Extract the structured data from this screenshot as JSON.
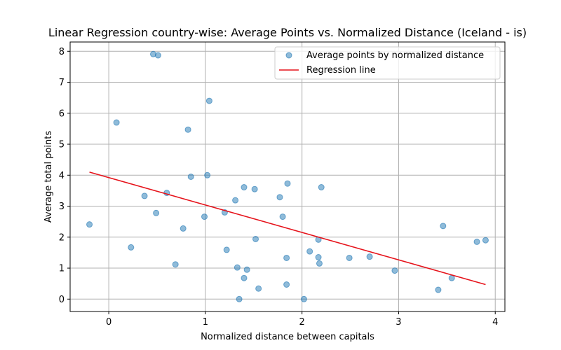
{
  "chart_data": {
    "type": "scatter",
    "title": "Linear Regression country-wise: Average Points vs. Normalized Distance (Iceland - is)",
    "xlabel": "Normalized distance between capitals",
    "ylabel": "Average total points",
    "xlim": [
      -0.4,
      4.1
    ],
    "ylim": [
      -0.4,
      8.3
    ],
    "xticks": [
      0,
      1,
      2,
      3,
      4
    ],
    "yticks": [
      0,
      1,
      2,
      3,
      4,
      5,
      6,
      7,
      8
    ],
    "grid": true,
    "legend_position": "upper-right",
    "colors": {
      "points": "#1f77b4",
      "line": "#e6131b"
    },
    "series": [
      {
        "name": "Average points by normalized distance",
        "kind": "scatter",
        "points": [
          [
            0.46,
            7.91
          ],
          [
            0.51,
            7.87
          ],
          [
            1.04,
            6.4
          ],
          [
            0.08,
            5.7
          ],
          [
            0.82,
            5.47
          ],
          [
            1.02,
            4.0
          ],
          [
            0.85,
            3.95
          ],
          [
            1.85,
            3.73
          ],
          [
            1.4,
            3.61
          ],
          [
            1.51,
            3.55
          ],
          [
            2.2,
            3.61
          ],
          [
            0.6,
            3.43
          ],
          [
            0.37,
            3.33
          ],
          [
            1.77,
            3.29
          ],
          [
            1.31,
            3.19
          ],
          [
            1.2,
            2.8
          ],
          [
            0.49,
            2.78
          ],
          [
            0.99,
            2.66
          ],
          [
            1.8,
            2.66
          ],
          [
            -0.2,
            2.41
          ],
          [
            3.46,
            2.36
          ],
          [
            0.77,
            2.28
          ],
          [
            1.52,
            1.94
          ],
          [
            2.17,
            1.92
          ],
          [
            3.9,
            1.9
          ],
          [
            3.81,
            1.85
          ],
          [
            0.23,
            1.67
          ],
          [
            1.22,
            1.59
          ],
          [
            2.08,
            1.54
          ],
          [
            2.17,
            1.35
          ],
          [
            1.84,
            1.33
          ],
          [
            2.49,
            1.33
          ],
          [
            2.7,
            1.37
          ],
          [
            0.69,
            1.12
          ],
          [
            2.18,
            1.15
          ],
          [
            1.33,
            1.02
          ],
          [
            1.43,
            0.95
          ],
          [
            2.96,
            0.92
          ],
          [
            1.4,
            0.68
          ],
          [
            3.55,
            0.68
          ],
          [
            1.84,
            0.47
          ],
          [
            1.55,
            0.34
          ],
          [
            3.41,
            0.3
          ],
          [
            1.35,
            0.0
          ],
          [
            2.02,
            0.0
          ]
        ]
      },
      {
        "name": "Regression line",
        "kind": "line",
        "points": [
          [
            -0.2,
            4.1
          ],
          [
            3.9,
            0.47
          ]
        ]
      }
    ]
  }
}
